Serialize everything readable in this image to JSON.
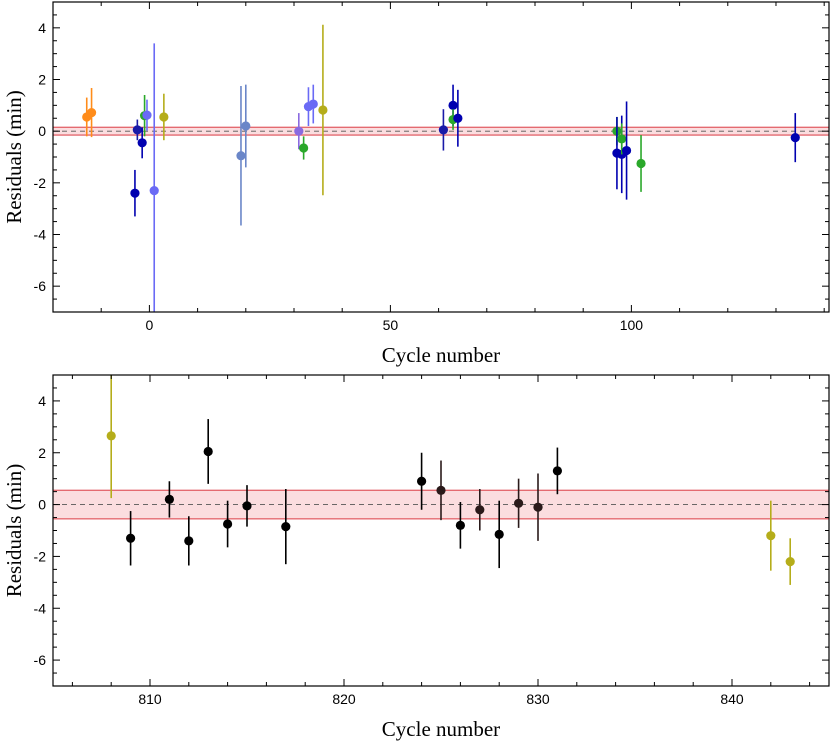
{
  "chart_data": [
    {
      "type": "scatter",
      "xlabel": "Cycle number",
      "ylabel": "Residuals (min)",
      "xlim": [
        -20,
        141
      ],
      "ylim": [
        -7,
        5
      ],
      "xticks": [
        0,
        50,
        100
      ],
      "yticks": [
        -6,
        -4,
        -2,
        0,
        2,
        4
      ],
      "band": [
        -0.15,
        0.15
      ],
      "points": [
        {
          "x": -13,
          "y": 0.55,
          "err": 0.75,
          "color": "#ff8c1a"
        },
        {
          "x": -12,
          "y": 0.72,
          "err": 0.95,
          "color": "#ff8c1a"
        },
        {
          "x": -2.5,
          "y": 0.05,
          "err": 0.4,
          "color": "#1a1aa8"
        },
        {
          "x": -3,
          "y": -2.4,
          "err": 0.9,
          "color": "#0000b0"
        },
        {
          "x": -1.5,
          "y": -0.45,
          "err": 0.6,
          "color": "#0000b0"
        },
        {
          "x": -1,
          "y": 0.6,
          "err": 0.8,
          "color": "#2aa82a"
        },
        {
          "x": -0.5,
          "y": 0.62,
          "err": 0.6,
          "color": "#6a6af5"
        },
        {
          "x": 1,
          "y": -2.3,
          "err": 5.7,
          "color": "#6a6af5"
        },
        {
          "x": 3,
          "y": 0.55,
          "err": 0.9,
          "color": "#b5ad1a"
        },
        {
          "x": 19,
          "y": -0.95,
          "err": 2.7,
          "color": "#6a86c8"
        },
        {
          "x": 20,
          "y": 0.2,
          "err": 1.6,
          "color": "#6a86c8"
        },
        {
          "x": 31,
          "y": 0.0,
          "err": 0.7,
          "color": "#8a6ae0"
        },
        {
          "x": 32,
          "y": -0.65,
          "err": 0.45,
          "color": "#2aa82a"
        },
        {
          "x": 33,
          "y": 0.95,
          "err": 0.75,
          "color": "#6a6af5"
        },
        {
          "x": 34,
          "y": 1.05,
          "err": 0.75,
          "color": "#6a6af5"
        },
        {
          "x": 36,
          "y": 0.82,
          "err": 3.3,
          "color": "#b5ad1a"
        },
        {
          "x": 61,
          "y": 0.05,
          "err": 0.8,
          "color": "#1a1aa8"
        },
        {
          "x": 63,
          "y": 1.0,
          "err": 0.8,
          "color": "#0000b0"
        },
        {
          "x": 63,
          "y": 0.45,
          "err": 0.4,
          "color": "#2aa82a"
        },
        {
          "x": 64,
          "y": 0.5,
          "err": 1.1,
          "color": "#0000b0"
        },
        {
          "x": 97,
          "y": 0.0,
          "err": 0.55,
          "color": "#2aa82a"
        },
        {
          "x": 97,
          "y": -0.85,
          "err": 1.4,
          "color": "#0000b0"
        },
        {
          "x": 98,
          "y": -0.9,
          "err": 1.5,
          "color": "#0000b0"
        },
        {
          "x": 98,
          "y": -0.3,
          "err": 0.6,
          "color": "#2aa82a"
        },
        {
          "x": 99,
          "y": -0.75,
          "err": 1.9,
          "color": "#0000b0"
        },
        {
          "x": 102,
          "y": -1.25,
          "err": 1.1,
          "color": "#2aa82a"
        },
        {
          "x": 134,
          "y": -0.25,
          "err": 0.95,
          "color": "#0000b0"
        }
      ]
    },
    {
      "type": "scatter",
      "xlabel": "Cycle number",
      "ylabel": "Residuals (min)",
      "xlim": [
        805,
        845
      ],
      "ylim": [
        -7,
        5
      ],
      "xticks": [
        810,
        820,
        830,
        840
      ],
      "yticks": [
        -6,
        -4,
        -2,
        0,
        2,
        4
      ],
      "band": [
        -0.55,
        0.55
      ],
      "points": [
        {
          "x": 808,
          "y": 2.65,
          "err": 2.4,
          "color": "#b5ad1a"
        },
        {
          "x": 809,
          "y": -1.3,
          "err": 1.05,
          "color": "#000000"
        },
        {
          "x": 811,
          "y": 0.2,
          "err": 0.7,
          "color": "#000000"
        },
        {
          "x": 812,
          "y": -1.4,
          "err": 0.95,
          "color": "#000000"
        },
        {
          "x": 813,
          "y": 2.05,
          "err": 1.25,
          "color": "#000000"
        },
        {
          "x": 814,
          "y": -0.75,
          "err": 0.9,
          "color": "#000000"
        },
        {
          "x": 815,
          "y": -0.05,
          "err": 0.8,
          "color": "#000000"
        },
        {
          "x": 817,
          "y": -0.85,
          "err": 1.45,
          "color": "#000000"
        },
        {
          "x": 824,
          "y": 0.9,
          "err": 1.1,
          "color": "#000000"
        },
        {
          "x": 825,
          "y": 0.55,
          "err": 1.15,
          "color": "#2a1a1a"
        },
        {
          "x": 826,
          "y": -0.8,
          "err": 0.9,
          "color": "#000000"
        },
        {
          "x": 827,
          "y": -0.2,
          "err": 0.8,
          "color": "#2a1a1a"
        },
        {
          "x": 828,
          "y": -1.15,
          "err": 1.3,
          "color": "#000000"
        },
        {
          "x": 829,
          "y": 0.05,
          "err": 0.95,
          "color": "#2a1a1a"
        },
        {
          "x": 830,
          "y": -0.1,
          "err": 1.3,
          "color": "#2a1a1a"
        },
        {
          "x": 831,
          "y": 1.3,
          "err": 0.9,
          "color": "#000000"
        },
        {
          "x": 842,
          "y": -1.2,
          "err": 1.35,
          "color": "#b5ad1a"
        },
        {
          "x": 843,
          "y": -2.2,
          "err": 0.9,
          "color": "#b5ad1a"
        }
      ]
    }
  ]
}
